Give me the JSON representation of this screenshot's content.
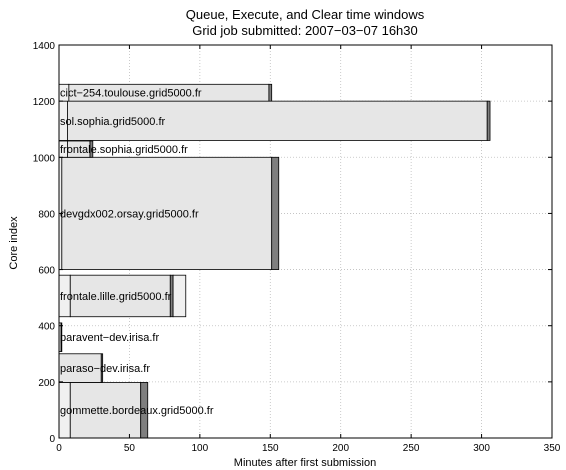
{
  "chart_data": {
    "type": "bar",
    "title": [
      "Queue, Execute, and Clear time windows",
      "Grid job submitted: 2007−03−07 16h30"
    ],
    "xlabel": "Minutes after first submission",
    "ylabel": "Core index",
    "xlim": [
      0,
      350
    ],
    "ylim": [
      0,
      1400
    ],
    "x_ticks": [
      "0",
      "50",
      "100",
      "150",
      "200",
      "250",
      "300",
      "350"
    ],
    "y_ticks": [
      "0",
      "200",
      "400",
      "600",
      "800",
      "1000",
      "1200",
      "1400"
    ],
    "grid": true,
    "colors": {
      "queue": "#f0f0f0",
      "execute": "#e6e6e6",
      "clear": "#7f7f7f",
      "edge": "#000000"
    },
    "series": [
      {
        "label": "gommette.bordeaux.grid5000.fr",
        "core_start": 0,
        "core_end": 198,
        "queue_start": 0,
        "exec_start": 8,
        "exec_end": 58,
        "clear_end": 63
      },
      {
        "label": "paraso−dev.irisa.fr",
        "core_start": 198,
        "core_end": 300,
        "queue_start": 0,
        "exec_start": 0,
        "exec_end": 30,
        "clear_end": 31
      },
      {
        "label": "paravent−dev.irisa.fr",
        "core_start": 308,
        "core_end": 410,
        "queue_start": 0,
        "exec_start": 0,
        "exec_end": 1.5,
        "clear_end": 2
      },
      {
        "label": "frontale.lille.grid5000.fr",
        "core_start": 432,
        "core_end": 580,
        "queue_start": 0,
        "exec_start": 8,
        "exec_end": 79,
        "clear_end": 81
      },
      {
        "label": "devgdx002.orsay.grid5000.fr",
        "core_start": 600,
        "core_end": 1000,
        "queue_start": 0,
        "exec_start": 2,
        "exec_end": 151,
        "clear_end": 156
      },
      {
        "label": "frontale.sophia.grid5000.fr",
        "core_start": 1000,
        "core_end": 1058,
        "queue_start": 0,
        "exec_start": 6,
        "exec_end": 22,
        "clear_end": 24
      },
      {
        "label": "sol.sophia.grid5000.fr",
        "core_start": 1060,
        "core_end": 1200,
        "queue_start": 0,
        "exec_start": 6,
        "exec_end": 304,
        "clear_end": 306
      },
      {
        "label": "cict−254.toulouse.grid5000.fr",
        "core_start": 1200,
        "core_end": 1260,
        "queue_start": 0,
        "exec_start": 7,
        "exec_end": 149,
        "clear_end": 151
      }
    ],
    "queue_overlays": [
      {
        "series": "frontale.lille.grid5000.fr",
        "x_start": 81,
        "x_end": 90,
        "core_start": 432,
        "core_end": 580
      }
    ]
  }
}
